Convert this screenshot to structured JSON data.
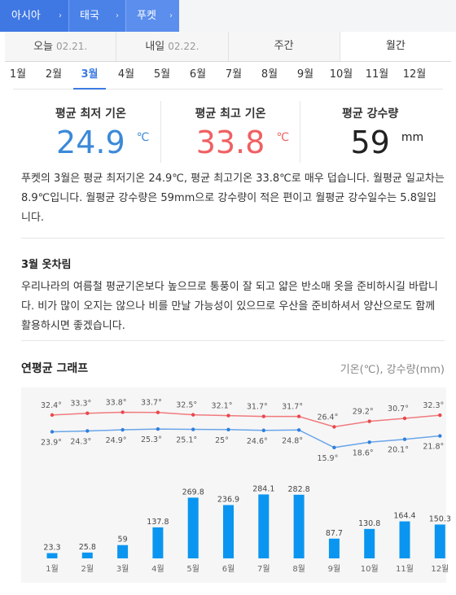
{
  "breadcrumb": [
    {
      "label": "아시아",
      "chevron": "›"
    },
    {
      "label": "태국",
      "chevron": "›"
    },
    {
      "label": "푸켓",
      "chevron": "›"
    }
  ],
  "tabs": [
    {
      "label": "오늘",
      "date": "02.21."
    },
    {
      "label": "내일",
      "date": "02.22."
    },
    {
      "label": "주간",
      "date": ""
    },
    {
      "label": "월간",
      "date": ""
    }
  ],
  "active_tab": 3,
  "months": [
    "1월",
    "2월",
    "3월",
    "4월",
    "5월",
    "6월",
    "7월",
    "8월",
    "9월",
    "10월",
    "11월",
    "12월"
  ],
  "active_month": 2,
  "stats": {
    "low": {
      "label": "평균 최저 기온",
      "value": "24.9",
      "unit": "℃",
      "color": "#3b89d8"
    },
    "high": {
      "label": "평균 최고 기온",
      "value": "33.8",
      "unit": "℃",
      "color": "#f06062"
    },
    "rain": {
      "label": "평균 강수량",
      "value": "59",
      "unit": "mm",
      "color": "#222222"
    }
  },
  "description": "푸켓의 3월은 평균 최저기온 24.9℃, 평균 최고기온 33.8℃로 매우 덥습니다. 월평균 일교차는 8.9℃입니다. 월평균 강수량은 59mm으로 강수량이 적은 편이고 월평균 강수일수는 5.8일입니다.",
  "clothes": {
    "title": "3월 옷차림",
    "text": "우리나라의 여름철 평균기온보다 높으므로 통풍이 잘 되고 얇은 반소매 옷을 준비하시길 바랍니다. 비가 많이 오지는 않으나 비를 만날 가능성이 있으므로 우산을 준비하셔서 양산으로도 함께 활용하시면 좋겠습니다."
  },
  "graph": {
    "title": "연평균 그래프",
    "unit_label": "기온(℃), 강수량(mm)"
  },
  "chart_data": {
    "type": "line",
    "categories": [
      "1월",
      "2월",
      "3월",
      "4월",
      "5월",
      "6월",
      "7월",
      "8월",
      "9월",
      "10월",
      "11월",
      "12월"
    ],
    "series": [
      {
        "type": "line",
        "values": [
          32.4,
          33.3,
          33.8,
          33.7,
          32.5,
          32.1,
          31.7,
          31.7,
          26.4,
          29.2,
          30.7,
          32.3
        ],
        "labels": [
          "32.4°",
          "33.3°",
          "33.8°",
          "33.7°",
          "32.5°",
          "32.1°",
          "31.7°",
          "31.7°",
          "26.4°",
          "29.2°",
          "30.7°",
          "32.3°"
        ],
        "color": "#f07a7e"
      },
      {
        "type": "line",
        "values": [
          23.9,
          24.3,
          24.9,
          25.3,
          25.1,
          25.0,
          24.6,
          24.8,
          15.9,
          18.6,
          20.1,
          21.8
        ],
        "labels": [
          "23.9°",
          "24.3°",
          "24.9°",
          "25.3°",
          "25.1°",
          "25°",
          "24.6°",
          "24.8°",
          "15.9°",
          "18.6°",
          "20.1°",
          "21.8°"
        ],
        "color": "#6aa6ea"
      },
      {
        "type": "bar",
        "values": [
          23.3,
          25.8,
          59,
          137.8,
          269.8,
          236.9,
          284.1,
          282.8,
          87.7,
          130.8,
          164.4,
          150.3
        ],
        "labels": [
          "23.3",
          "25.8",
          "59",
          "137.8",
          "269.8",
          "236.9",
          "284.1",
          "282.8",
          "87.7",
          "130.8",
          "164.4",
          "150.3"
        ],
        "color": "#0a96f0"
      }
    ],
    "grid": false,
    "legend": "none"
  }
}
